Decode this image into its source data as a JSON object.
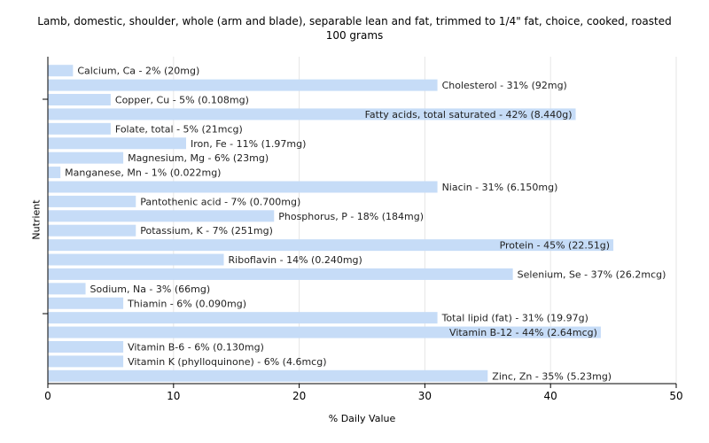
{
  "chart_data": {
    "type": "bar",
    "orientation": "horizontal",
    "title_lines": [
      "Lamb, domestic, shoulder, whole (arm and blade), separable lean and fat, trimmed to 1/4\" fat, choice, cooked, roasted",
      "100 grams"
    ],
    "xlabel": "% Daily Value",
    "ylabel": "Nutrient",
    "xlim": [
      0,
      50
    ],
    "xticks": [
      0,
      10,
      20,
      30,
      40,
      50
    ],
    "grid": "vertical",
    "bar_color": "#c6dcf7",
    "categories": [
      "Calcium, Ca - 2% (20mg)",
      "Cholesterol - 31% (92mg)",
      "Copper, Cu - 5% (0.108mg)",
      "Fatty acids, total saturated - 42% (8.440g)",
      "Folate, total - 5% (21mcg)",
      "Iron, Fe - 11% (1.97mg)",
      "Magnesium, Mg - 6% (23mg)",
      "Manganese, Mn - 1% (0.022mg)",
      "Niacin - 31% (6.150mg)",
      "Pantothenic acid - 7% (0.700mg)",
      "Phosphorus, P - 18% (184mg)",
      "Potassium, K - 7% (251mg)",
      "Protein - 45% (22.51g)",
      "Riboflavin - 14% (0.240mg)",
      "Selenium, Se - 37% (26.2mcg)",
      "Sodium, Na - 3% (66mg)",
      "Thiamin - 6% (0.090mg)",
      "Total lipid (fat) - 31% (19.97g)",
      "Vitamin B-12 - 44% (2.64mcg)",
      "Vitamin B-6 - 6% (0.130mg)",
      "Vitamin K (phylloquinone) - 6% (4.6mcg)",
      "Zinc, Zn - 35% (5.23mg)"
    ],
    "values": [
      2,
      31,
      5,
      42,
      5,
      11,
      6,
      1,
      31,
      7,
      18,
      7,
      45,
      14,
      37,
      3,
      6,
      31,
      44,
      6,
      6,
      35
    ],
    "labels_inside_bar": [
      false,
      false,
      false,
      true,
      false,
      false,
      false,
      false,
      false,
      false,
      false,
      false,
      true,
      false,
      false,
      false,
      false,
      false,
      true,
      false,
      false,
      false
    ]
  }
}
